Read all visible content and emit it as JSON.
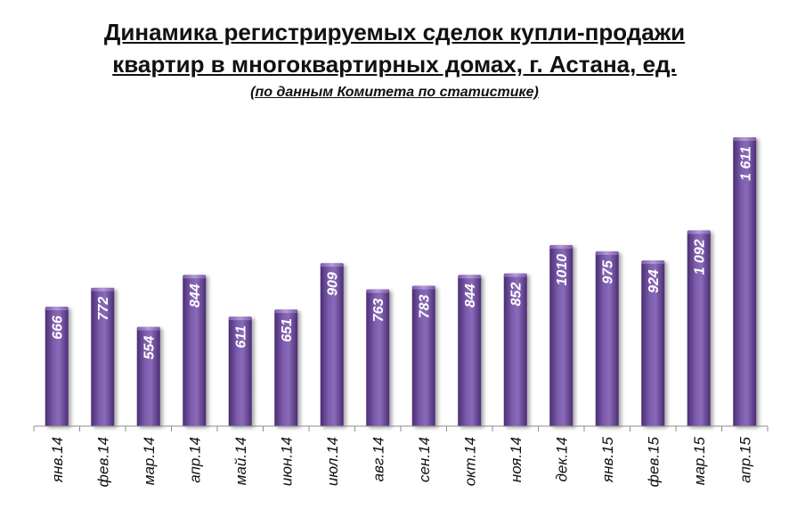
{
  "chart_data": {
    "type": "bar",
    "title_lines": [
      "Динамика регистрируемых сделок купли-продажи",
      "квартир в многоквартирных домах, г. Астана, ед."
    ],
    "subtitle": "(по данным Комитета по статистике)",
    "categories": [
      "янв.14",
      "фев.14",
      "мар.14",
      "апр.14",
      "май.14",
      "июн.14",
      "июл.14",
      "авг.14",
      "сен.14",
      "окт.14",
      "ноя.14",
      "дек.14",
      "янв.15",
      "фев.15",
      "мар.15",
      "апр.15"
    ],
    "values": [
      666,
      772,
      554,
      844,
      611,
      651,
      909,
      763,
      783,
      844,
      852,
      1010,
      975,
      924,
      1092,
      1611
    ],
    "value_labels": [
      "666",
      "772",
      "554",
      "844",
      "611",
      "651",
      "909",
      "763",
      "783",
      "844",
      "852",
      "1010",
      "975",
      "924",
      "1 092",
      "1 611"
    ],
    "ylim": [
      0,
      1611
    ],
    "grid": false,
    "legend": "none",
    "bar_color": "#6a4a9a",
    "colors": {
      "bar_dark": "#4b2d73",
      "bar_mid": "#7b5bab",
      "bar_light": "#9a7cc6",
      "label_text": "#ffffff",
      "axis": "#888888"
    }
  }
}
